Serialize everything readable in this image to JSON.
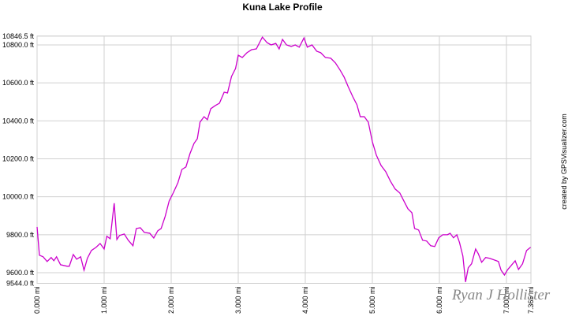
{
  "chart_data": {
    "type": "line",
    "title": "Kuna Lake Profile",
    "annotations": [
      "created by GPSVisualizer.com",
      "Ryan J Hollister"
    ],
    "color": "#cc00cc",
    "grid": true,
    "xlim": [
      0,
      7.365
    ],
    "ylim": [
      9544,
      10846.5
    ],
    "xticks": [
      {
        "value": 0,
        "label": "0.000 mi"
      },
      {
        "value": 1,
        "label": "1.000 mi"
      },
      {
        "value": 2,
        "label": "2.000 mi"
      },
      {
        "value": 3,
        "label": "3.000 mi"
      },
      {
        "value": 4,
        "label": "4.000 mi"
      },
      {
        "value": 5,
        "label": "5.000 mi"
      },
      {
        "value": 6,
        "label": "6.000 mi"
      },
      {
        "value": 7,
        "label": "7.000 mi"
      },
      {
        "value": 7.365,
        "label": "7.365 mi"
      }
    ],
    "yticks": [
      {
        "value": 9544,
        "label": "9544.0 ft"
      },
      {
        "value": 9600,
        "label": "9600.0 ft"
      },
      {
        "value": 9800,
        "label": "9800.0 ft"
      },
      {
        "value": 10000,
        "label": "10000.0 ft"
      },
      {
        "value": 10200,
        "label": "10200.0 ft"
      },
      {
        "value": 10400,
        "label": "10400.0 ft"
      },
      {
        "value": 10600,
        "label": "10600.0 ft"
      },
      {
        "value": 10800,
        "label": "10800.0 ft"
      },
      {
        "value": 10846.5,
        "label": "10846.5 ft"
      }
    ],
    "x": [
      0,
      0.035,
      0.09,
      0.15,
      0.21,
      0.25,
      0.29,
      0.35,
      0.45,
      0.48,
      0.54,
      0.59,
      0.65,
      0.7,
      0.75,
      0.81,
      0.88,
      0.94,
      1.0,
      1.04,
      1.09,
      1.15,
      1.19,
      1.23,
      1.3,
      1.36,
      1.43,
      1.48,
      1.54,
      1.6,
      1.68,
      1.74,
      1.8,
      1.85,
      1.91,
      1.97,
      2.03,
      2.1,
      2.16,
      2.22,
      2.28,
      2.34,
      2.39,
      2.43,
      2.49,
      2.54,
      2.59,
      2.66,
      2.72,
      2.79,
      2.84,
      2.9,
      2.96,
      3.0,
      3.06,
      3.13,
      3.2,
      3.27,
      3.36,
      3.43,
      3.49,
      3.56,
      3.61,
      3.66,
      3.72,
      3.79,
      3.85,
      3.91,
      3.98,
      4.03,
      4.1,
      4.17,
      4.23,
      4.3,
      4.38,
      4.45,
      4.52,
      4.58,
      4.64,
      4.71,
      4.77,
      4.82,
      4.88,
      4.94,
      5.0,
      5.06,
      5.13,
      5.2,
      5.27,
      5.34,
      5.41,
      5.47,
      5.53,
      5.59,
      5.63,
      5.69,
      5.75,
      5.81,
      5.87,
      5.93,
      5.99,
      6.05,
      6.12,
      6.16,
      6.21,
      6.26,
      6.3,
      6.35,
      6.39,
      6.43,
      6.48,
      6.54,
      6.58,
      6.63,
      6.69,
      6.75,
      6.82,
      6.88,
      6.92,
      6.97,
      7.02,
      7.08,
      7.13,
      7.18,
      7.24,
      7.3,
      7.36
    ],
    "values": [
      9841,
      9692,
      9684,
      9659,
      9680,
      9663,
      9684,
      9642,
      9634,
      9634,
      9696,
      9671,
      9684,
      9613,
      9676,
      9717,
      9734,
      9754,
      9725,
      9792,
      9779,
      9966,
      9775,
      9796,
      9804,
      9771,
      9742,
      9833,
      9837,
      9812,
      9808,
      9783,
      9821,
      9833,
      9896,
      9978,
      10020,
      10074,
      10144,
      10157,
      10227,
      10281,
      10306,
      10393,
      10422,
      10406,
      10464,
      10481,
      10493,
      10551,
      10547,
      10634,
      10676,
      10746,
      10734,
      10759,
      10775,
      10779,
      10841,
      10812,
      10800,
      10808,
      10779,
      10829,
      10800,
      10792,
      10800,
      10788,
      10837,
      10788,
      10800,
      10767,
      10759,
      10734,
      10730,
      10705,
      10667,
      10630,
      10580,
      10526,
      10485,
      10422,
      10422,
      10393,
      10290,
      10219,
      10165,
      10132,
      10082,
      10041,
      10020,
      9978,
      9937,
      9916,
      9833,
      9825,
      9771,
      9767,
      9742,
      9738,
      9784,
      9800,
      9800,
      9808,
      9784,
      9800,
      9759,
      9688,
      9551,
      9626,
      9647,
      9725,
      9700,
      9655,
      9680,
      9676,
      9667,
      9659,
      9613,
      9588,
      9617,
      9642,
      9663,
      9617,
      9647,
      9717,
      9734
    ]
  }
}
